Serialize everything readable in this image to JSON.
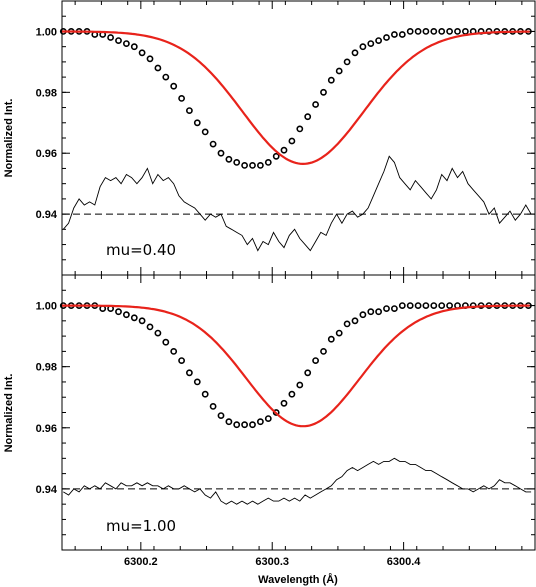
{
  "chart_data": [
    {
      "type": "line",
      "panel": "top",
      "annotation": "mu=0.40",
      "ylabel": "Normalized Int.",
      "xlabel": "",
      "xlim": [
        6300.14,
        6300.5
      ],
      "ylim": [
        0.92,
        1.01
      ],
      "yticks": [
        0.94,
        0.96,
        0.98,
        1.0
      ],
      "ytick_labels": [
        "0.94",
        "0.96",
        "0.98",
        "1.00"
      ],
      "xticks": [
        6300.2,
        6300.3,
        6300.4
      ],
      "xtick_labels": [
        "",
        "",
        ""
      ],
      "series": [
        {
          "role": "observed",
          "style": "open-circles",
          "color": "#000000",
          "x": [
            6300.141,
            6300.147,
            6300.153,
            6300.159,
            6300.165,
            6300.171,
            6300.177,
            6300.183,
            6300.189,
            6300.195,
            6300.201,
            6300.207,
            6300.213,
            6300.219,
            6300.225,
            6300.231,
            6300.237,
            6300.243,
            6300.249,
            6300.255,
            6300.261,
            6300.267,
            6300.273,
            6300.279,
            6300.285,
            6300.291,
            6300.297,
            6300.303,
            6300.309,
            6300.315,
            6300.321,
            6300.327,
            6300.333,
            6300.339,
            6300.345,
            6300.351,
            6300.357,
            6300.363,
            6300.369,
            6300.375,
            6300.381,
            6300.387,
            6300.393,
            6300.399,
            6300.405,
            6300.411,
            6300.417,
            6300.423,
            6300.429,
            6300.435,
            6300.441,
            6300.447,
            6300.453,
            6300.459,
            6300.465,
            6300.471,
            6300.477,
            6300.483,
            6300.489,
            6300.495
          ],
          "y": [
            1.0,
            1.0,
            1.0,
            1.0,
            0.999,
            0.999,
            0.998,
            0.997,
            0.996,
            0.995,
            0.993,
            0.991,
            0.988,
            0.985,
            0.982,
            0.978,
            0.974,
            0.97,
            0.967,
            0.963,
            0.96,
            0.958,
            0.957,
            0.956,
            0.956,
            0.956,
            0.957,
            0.959,
            0.961,
            0.964,
            0.968,
            0.972,
            0.976,
            0.98,
            0.984,
            0.987,
            0.99,
            0.993,
            0.995,
            0.996,
            0.997,
            0.998,
            0.999,
            0.999,
            1.0,
            1.0,
            1.0,
            1.0,
            1.0,
            1.0,
            1.0,
            1.0,
            1.0,
            1.0,
            1.0,
            1.0,
            1.0,
            1.0,
            1.0,
            1.0
          ]
        },
        {
          "role": "fit",
          "style": "line",
          "color": "#e8231b",
          "center": 6300.3235,
          "depth": 0.0435,
          "sigma": 0.046,
          "continuum": 1.0
        },
        {
          "role": "residual",
          "style": "thin-line",
          "color": "#000000",
          "x": [
            6300.141,
            6300.145,
            6300.149,
            6300.153,
            6300.157,
            6300.161,
            6300.165,
            6300.169,
            6300.173,
            6300.177,
            6300.181,
            6300.185,
            6300.189,
            6300.193,
            6300.197,
            6300.201,
            6300.205,
            6300.209,
            6300.213,
            6300.217,
            6300.221,
            6300.225,
            6300.229,
            6300.233,
            6300.237,
            6300.241,
            6300.245,
            6300.249,
            6300.253,
            6300.257,
            6300.261,
            6300.265,
            6300.269,
            6300.273,
            6300.277,
            6300.281,
            6300.285,
            6300.289,
            6300.293,
            6300.297,
            6300.301,
            6300.305,
            6300.309,
            6300.313,
            6300.317,
            6300.321,
            6300.325,
            6300.329,
            6300.333,
            6300.337,
            6300.341,
            6300.345,
            6300.349,
            6300.353,
            6300.357,
            6300.361,
            6300.365,
            6300.369,
            6300.373,
            6300.377,
            6300.381,
            6300.385,
            6300.389,
            6300.393,
            6300.397,
            6300.401,
            6300.405,
            6300.409,
            6300.413,
            6300.417,
            6300.421,
            6300.425,
            6300.429,
            6300.433,
            6300.437,
            6300.441,
            6300.445,
            6300.449,
            6300.453,
            6300.457,
            6300.461,
            6300.465,
            6300.469,
            6300.473,
            6300.477,
            6300.481,
            6300.485,
            6300.489,
            6300.493,
            6300.497
          ],
          "y": [
            0.935,
            0.937,
            0.942,
            0.945,
            0.943,
            0.944,
            0.943,
            0.949,
            0.952,
            0.951,
            0.952,
            0.95,
            0.953,
            0.952,
            0.95,
            0.952,
            0.955,
            0.95,
            0.953,
            0.951,
            0.952,
            0.95,
            0.946,
            0.944,
            0.943,
            0.942,
            0.94,
            0.938,
            0.94,
            0.939,
            0.94,
            0.936,
            0.935,
            0.934,
            0.933,
            0.93,
            0.932,
            0.928,
            0.931,
            0.93,
            0.934,
            0.931,
            0.929,
            0.933,
            0.935,
            0.932,
            0.93,
            0.928,
            0.931,
            0.934,
            0.933,
            0.937,
            0.94,
            0.937,
            0.94,
            0.941,
            0.939,
            0.94,
            0.942,
            0.946,
            0.95,
            0.954,
            0.959,
            0.957,
            0.952,
            0.95,
            0.948,
            0.951,
            0.949,
            0.947,
            0.945,
            0.948,
            0.953,
            0.951,
            0.955,
            0.952,
            0.954,
            0.95,
            0.948,
            0.946,
            0.944,
            0.94,
            0.942,
            0.937,
            0.939,
            0.941,
            0.938,
            0.94,
            0.943,
            0.94
          ]
        },
        {
          "role": "reference",
          "style": "dashed",
          "color": "#000000",
          "y": 0.94
        }
      ]
    },
    {
      "type": "line",
      "panel": "bottom",
      "annotation": "mu=1.00",
      "ylabel": "Normalized Int.",
      "xlabel": "Wavelength (Å)",
      "xlim": [
        6300.14,
        6300.5
      ],
      "ylim": [
        0.92,
        1.01
      ],
      "yticks": [
        0.94,
        0.96,
        0.98,
        1.0
      ],
      "ytick_labels": [
        "0.94",
        "0.96",
        "0.98",
        "1.00"
      ],
      "xticks": [
        6300.2,
        6300.3,
        6300.4
      ],
      "xtick_labels": [
        "6300.2",
        "6300.3",
        "6300.4"
      ],
      "series": [
        {
          "role": "observed",
          "style": "open-circles",
          "color": "#000000",
          "x": [
            6300.141,
            6300.147,
            6300.153,
            6300.159,
            6300.165,
            6300.171,
            6300.177,
            6300.183,
            6300.189,
            6300.195,
            6300.201,
            6300.207,
            6300.213,
            6300.219,
            6300.225,
            6300.231,
            6300.237,
            6300.243,
            6300.249,
            6300.255,
            6300.261,
            6300.267,
            6300.273,
            6300.279,
            6300.285,
            6300.291,
            6300.297,
            6300.303,
            6300.309,
            6300.315,
            6300.321,
            6300.327,
            6300.333,
            6300.339,
            6300.345,
            6300.351,
            6300.357,
            6300.363,
            6300.369,
            6300.375,
            6300.381,
            6300.387,
            6300.393,
            6300.399,
            6300.405,
            6300.411,
            6300.417,
            6300.423,
            6300.429,
            6300.435,
            6300.441,
            6300.447,
            6300.453,
            6300.459,
            6300.465,
            6300.471,
            6300.477,
            6300.483,
            6300.489,
            6300.495
          ],
          "y": [
            1.0,
            1.0,
            1.0,
            1.0,
            1.0,
            0.999,
            0.999,
            0.998,
            0.997,
            0.996,
            0.995,
            0.993,
            0.991,
            0.988,
            0.985,
            0.982,
            0.978,
            0.975,
            0.971,
            0.967,
            0.964,
            0.962,
            0.961,
            0.961,
            0.961,
            0.962,
            0.963,
            0.965,
            0.968,
            0.971,
            0.974,
            0.978,
            0.982,
            0.985,
            0.989,
            0.991,
            0.994,
            0.995,
            0.997,
            0.998,
            0.998,
            0.999,
            0.999,
            1.0,
            1.0,
            1.0,
            1.0,
            1.0,
            1.0,
            1.0,
            1.0,
            1.0,
            1.0,
            1.0,
            1.0,
            1.0,
            1.0,
            1.0,
            1.0,
            1.0
          ]
        },
        {
          "role": "fit",
          "style": "line",
          "color": "#e8231b",
          "center": 6300.3235,
          "depth": 0.0395,
          "sigma": 0.043,
          "continuum": 1.0
        },
        {
          "role": "residual",
          "style": "thin-line",
          "color": "#000000",
          "x": [
            6300.141,
            6300.145,
            6300.149,
            6300.153,
            6300.157,
            6300.161,
            6300.165,
            6300.169,
            6300.173,
            6300.177,
            6300.181,
            6300.185,
            6300.189,
            6300.193,
            6300.197,
            6300.201,
            6300.205,
            6300.209,
            6300.213,
            6300.217,
            6300.221,
            6300.225,
            6300.229,
            6300.233,
            6300.237,
            6300.241,
            6300.245,
            6300.249,
            6300.253,
            6300.257,
            6300.261,
            6300.265,
            6300.269,
            6300.273,
            6300.277,
            6300.281,
            6300.285,
            6300.289,
            6300.293,
            6300.297,
            6300.301,
            6300.305,
            6300.309,
            6300.313,
            6300.317,
            6300.321,
            6300.325,
            6300.329,
            6300.333,
            6300.337,
            6300.341,
            6300.345,
            6300.349,
            6300.353,
            6300.357,
            6300.361,
            6300.365,
            6300.369,
            6300.373,
            6300.377,
            6300.381,
            6300.385,
            6300.389,
            6300.393,
            6300.397,
            6300.401,
            6300.405,
            6300.409,
            6300.413,
            6300.417,
            6300.421,
            6300.425,
            6300.429,
            6300.433,
            6300.437,
            6300.441,
            6300.445,
            6300.449,
            6300.453,
            6300.457,
            6300.461,
            6300.465,
            6300.469,
            6300.473,
            6300.477,
            6300.481,
            6300.485,
            6300.489,
            6300.493,
            6300.497
          ],
          "y": [
            0.939,
            0.938,
            0.94,
            0.939,
            0.941,
            0.94,
            0.941,
            0.94,
            0.942,
            0.941,
            0.94,
            0.942,
            0.941,
            0.941,
            0.942,
            0.941,
            0.942,
            0.941,
            0.941,
            0.94,
            0.941,
            0.94,
            0.94,
            0.941,
            0.94,
            0.939,
            0.94,
            0.938,
            0.937,
            0.939,
            0.936,
            0.935,
            0.936,
            0.935,
            0.936,
            0.935,
            0.936,
            0.935,
            0.936,
            0.937,
            0.936,
            0.936,
            0.937,
            0.936,
            0.937,
            0.936,
            0.938,
            0.937,
            0.938,
            0.939,
            0.94,
            0.941,
            0.943,
            0.944,
            0.946,
            0.947,
            0.946,
            0.947,
            0.948,
            0.949,
            0.948,
            0.949,
            0.949,
            0.95,
            0.949,
            0.949,
            0.948,
            0.948,
            0.947,
            0.946,
            0.946,
            0.945,
            0.944,
            0.943,
            0.942,
            0.941,
            0.94,
            0.94,
            0.939,
            0.94,
            0.941,
            0.94,
            0.941,
            0.943,
            0.942,
            0.942,
            0.941,
            0.94,
            0.939,
            0.939
          ]
        },
        {
          "role": "reference",
          "style": "dashed",
          "color": "#000000",
          "y": 0.94
        }
      ]
    }
  ]
}
